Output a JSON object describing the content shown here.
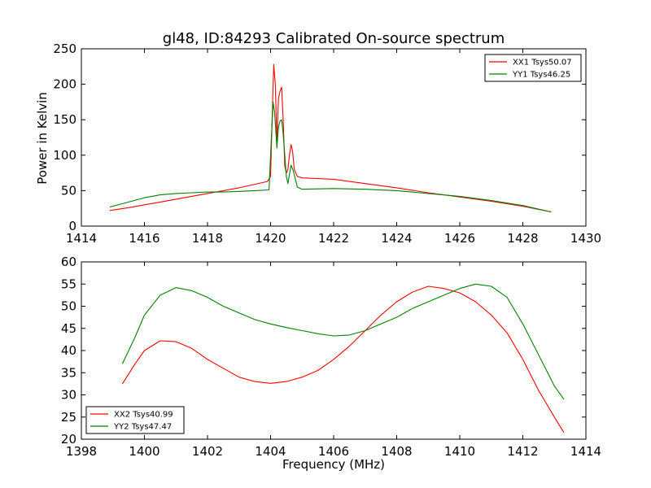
{
  "chart_data": [
    {
      "type": "line",
      "title": "gl48, ID:84293 Calibrated On-source spectrum",
      "xlabel": "",
      "ylabel": "Power in Kelvin",
      "xlim": [
        1414,
        1430
      ],
      "ylim": [
        0,
        250
      ],
      "xticks": [
        1414,
        1416,
        1418,
        1420,
        1422,
        1424,
        1426,
        1428,
        1430
      ],
      "yticks": [
        0,
        50,
        100,
        150,
        200,
        250
      ],
      "grid": false,
      "legend": "top-right",
      "series": [
        {
          "name": "XX1 Tsys50.07",
          "color": "#ff0000",
          "points": [
            [
              1414.9,
              22
            ],
            [
              1415.5,
              26
            ],
            [
              1416,
              30
            ],
            [
              1416.5,
              34
            ],
            [
              1417,
              38
            ],
            [
              1417.5,
              42
            ],
            [
              1418,
              46
            ],
            [
              1418.5,
              50
            ],
            [
              1419,
              54
            ],
            [
              1419.5,
              59
            ],
            [
              1419.9,
              63
            ],
            [
              1420.0,
              70
            ],
            [
              1420.05,
              150
            ],
            [
              1420.1,
              228
            ],
            [
              1420.15,
              200
            ],
            [
              1420.2,
              120
            ],
            [
              1420.25,
              180
            ],
            [
              1420.3,
              190
            ],
            [
              1420.35,
              196
            ],
            [
              1420.4,
              150
            ],
            [
              1420.45,
              85
            ],
            [
              1420.5,
              75
            ],
            [
              1420.55,
              80
            ],
            [
              1420.6,
              100
            ],
            [
              1420.65,
              115
            ],
            [
              1420.7,
              105
            ],
            [
              1420.75,
              80
            ],
            [
              1420.85,
              70
            ],
            [
              1421,
              68
            ],
            [
              1422,
              66
            ],
            [
              1423,
              60
            ],
            [
              1424,
              54
            ],
            [
              1425,
              47
            ],
            [
              1426,
              41
            ],
            [
              1427,
              35
            ],
            [
              1428,
              28
            ],
            [
              1428.9,
              20
            ]
          ]
        },
        {
          "name": "YY1 Tsys46.25",
          "color": "#008000",
          "points": [
            [
              1414.9,
              27
            ],
            [
              1415.5,
              34
            ],
            [
              1416,
              40
            ],
            [
              1416.5,
              44
            ],
            [
              1417,
              46
            ],
            [
              1417.5,
              47
            ],
            [
              1418,
              48
            ],
            [
              1418.5,
              48
            ],
            [
              1419,
              49
            ],
            [
              1419.5,
              50
            ],
            [
              1419.95,
              51
            ],
            [
              1420.02,
              120
            ],
            [
              1420.08,
              175
            ],
            [
              1420.13,
              160
            ],
            [
              1420.2,
              110
            ],
            [
              1420.25,
              140
            ],
            [
              1420.3,
              148
            ],
            [
              1420.35,
              150
            ],
            [
              1420.4,
              130
            ],
            [
              1420.5,
              70
            ],
            [
              1420.55,
              60
            ],
            [
              1420.65,
              86
            ],
            [
              1420.72,
              78
            ],
            [
              1420.85,
              55
            ],
            [
              1421,
              52
            ],
            [
              1422,
              53
            ],
            [
              1423,
              52
            ],
            [
              1424,
              50
            ],
            [
              1425,
              46
            ],
            [
              1426,
              42
            ],
            [
              1427,
              36
            ],
            [
              1428,
              29
            ],
            [
              1428.9,
              20
            ]
          ]
        }
      ]
    },
    {
      "type": "line",
      "title": "",
      "xlabel": "Frequency (MHz)",
      "ylabel": "",
      "xlim": [
        1398,
        1414
      ],
      "ylim": [
        20,
        60
      ],
      "xticks": [
        1398,
        1400,
        1402,
        1404,
        1406,
        1408,
        1410,
        1412,
        1414
      ],
      "yticks": [
        20,
        25,
        30,
        35,
        40,
        45,
        50,
        55,
        60
      ],
      "grid": false,
      "legend": "bottom-left",
      "series": [
        {
          "name": "XX2 Tsys40.99",
          "color": "#ff0000",
          "points": [
            [
              1399.3,
              32.5
            ],
            [
              1399.7,
              37
            ],
            [
              1400,
              40
            ],
            [
              1400.5,
              42.2
            ],
            [
              1401,
              42
            ],
            [
              1401.5,
              40.5
            ],
            [
              1402,
              38
            ],
            [
              1402.5,
              36
            ],
            [
              1403,
              34
            ],
            [
              1403.5,
              33
            ],
            [
              1404,
              32.6
            ],
            [
              1404.5,
              33
            ],
            [
              1405,
              34
            ],
            [
              1405.5,
              35.5
            ],
            [
              1406,
              38
            ],
            [
              1406.5,
              41
            ],
            [
              1407,
              44.5
            ],
            [
              1407.5,
              48
            ],
            [
              1408,
              51
            ],
            [
              1408.5,
              53.2
            ],
            [
              1409,
              54.5
            ],
            [
              1409.5,
              54
            ],
            [
              1410,
              53
            ],
            [
              1410.5,
              51
            ],
            [
              1411,
              48
            ],
            [
              1411.5,
              44
            ],
            [
              1412,
              38
            ],
            [
              1412.5,
              31
            ],
            [
              1413,
              25
            ],
            [
              1413.3,
              21.5
            ]
          ]
        },
        {
          "name": "YY2 Tsys47.47",
          "color": "#008000",
          "points": [
            [
              1399.3,
              37
            ],
            [
              1399.7,
              43
            ],
            [
              1400,
              48
            ],
            [
              1400.5,
              52.5
            ],
            [
              1401,
              54.2
            ],
            [
              1401.5,
              53.5
            ],
            [
              1402,
              52
            ],
            [
              1402.5,
              50
            ],
            [
              1403,
              48.5
            ],
            [
              1403.5,
              47
            ],
            [
              1404,
              46
            ],
            [
              1404.5,
              45.2
            ],
            [
              1405,
              44.5
            ],
            [
              1405.5,
              43.8
            ],
            [
              1406,
              43.3
            ],
            [
              1406.5,
              43.5
            ],
            [
              1407,
              44.5
            ],
            [
              1407.5,
              46
            ],
            [
              1408,
              47.5
            ],
            [
              1408.5,
              49.5
            ],
            [
              1409,
              51
            ],
            [
              1409.5,
              52.5
            ],
            [
              1410,
              54
            ],
            [
              1410.5,
              55
            ],
            [
              1411,
              54.5
            ],
            [
              1411.5,
              52
            ],
            [
              1412,
              46
            ],
            [
              1412.5,
              39
            ],
            [
              1413,
              32
            ],
            [
              1413.3,
              29
            ]
          ]
        }
      ]
    }
  ]
}
